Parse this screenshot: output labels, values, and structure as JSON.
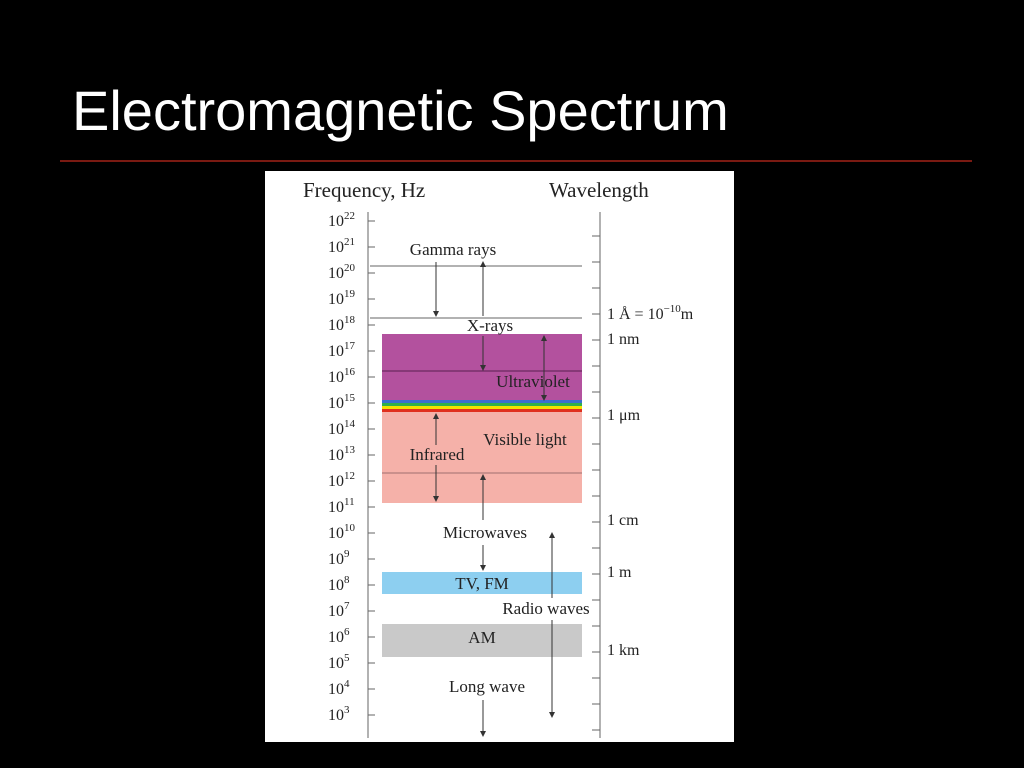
{
  "title": "Electromagnetic Spectrum",
  "diagram": {
    "frequency_heading": "Frequency, Hz",
    "wavelength_heading": "Wavelength",
    "frequency_ticks": [
      {
        "base": "10",
        "exponent": "22"
      },
      {
        "base": "10",
        "exponent": "21"
      },
      {
        "base": "10",
        "exponent": "20"
      },
      {
        "base": "10",
        "exponent": "19"
      },
      {
        "base": "10",
        "exponent": "18"
      },
      {
        "base": "10",
        "exponent": "17"
      },
      {
        "base": "10",
        "exponent": "16"
      },
      {
        "base": "10",
        "exponent": "15"
      },
      {
        "base": "10",
        "exponent": "14"
      },
      {
        "base": "10",
        "exponent": "13"
      },
      {
        "base": "10",
        "exponent": "12"
      },
      {
        "base": "10",
        "exponent": "11"
      },
      {
        "base": "10",
        "exponent": "10"
      },
      {
        "base": "10",
        "exponent": "9"
      },
      {
        "base": "10",
        "exponent": "8"
      },
      {
        "base": "10",
        "exponent": "7"
      },
      {
        "base": "10",
        "exponent": "6"
      },
      {
        "base": "10",
        "exponent": "5"
      },
      {
        "base": "10",
        "exponent": "4"
      },
      {
        "base": "10",
        "exponent": "3"
      }
    ],
    "wavelength_labels": [
      {
        "text": "1 Å = 10",
        "superscript": "−10",
        "suffix": "m"
      },
      {
        "text": "1 nm"
      },
      {
        "text": "1 μm"
      },
      {
        "text": "1 cm"
      },
      {
        "text": "1 m"
      },
      {
        "text": "1 km"
      }
    ],
    "band_labels": [
      "Gamma rays",
      "X-rays",
      "Ultraviolet",
      "Visible light",
      "Infrared",
      "Microwaves",
      "TV, FM",
      "Radio waves",
      "AM",
      "Long wave"
    ]
  }
}
